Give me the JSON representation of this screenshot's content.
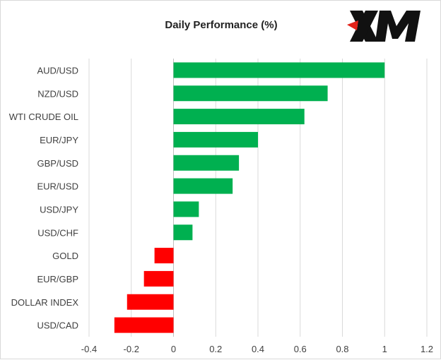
{
  "logo": {
    "text": "XM",
    "color": "#e2231a"
  },
  "chart_data": {
    "type": "bar",
    "orientation": "horizontal",
    "title": "Daily Performance (%)",
    "categories": [
      "AUD/USD",
      "NZD/USD",
      "WTI CRUDE OIL",
      "EUR/JPY",
      "GBP/USD",
      "EUR/USD",
      "USD/JPY",
      "USD/CHF",
      "GOLD",
      "EUR/GBP",
      "DOLLAR INDEX",
      "USD/CAD"
    ],
    "values": [
      1.0,
      0.73,
      0.62,
      0.4,
      0.31,
      0.28,
      0.12,
      0.09,
      -0.09,
      -0.14,
      -0.22,
      -0.28
    ],
    "xlim": [
      -0.4,
      1.2
    ],
    "xticks": [
      -0.4,
      -0.2,
      0,
      0.2,
      0.4,
      0.6,
      0.8,
      1,
      1.2
    ],
    "grid": true,
    "colors": {
      "positive": "#00b050",
      "negative": "#ff0000",
      "grid": "#d9d9d9",
      "text": "#404040"
    }
  }
}
